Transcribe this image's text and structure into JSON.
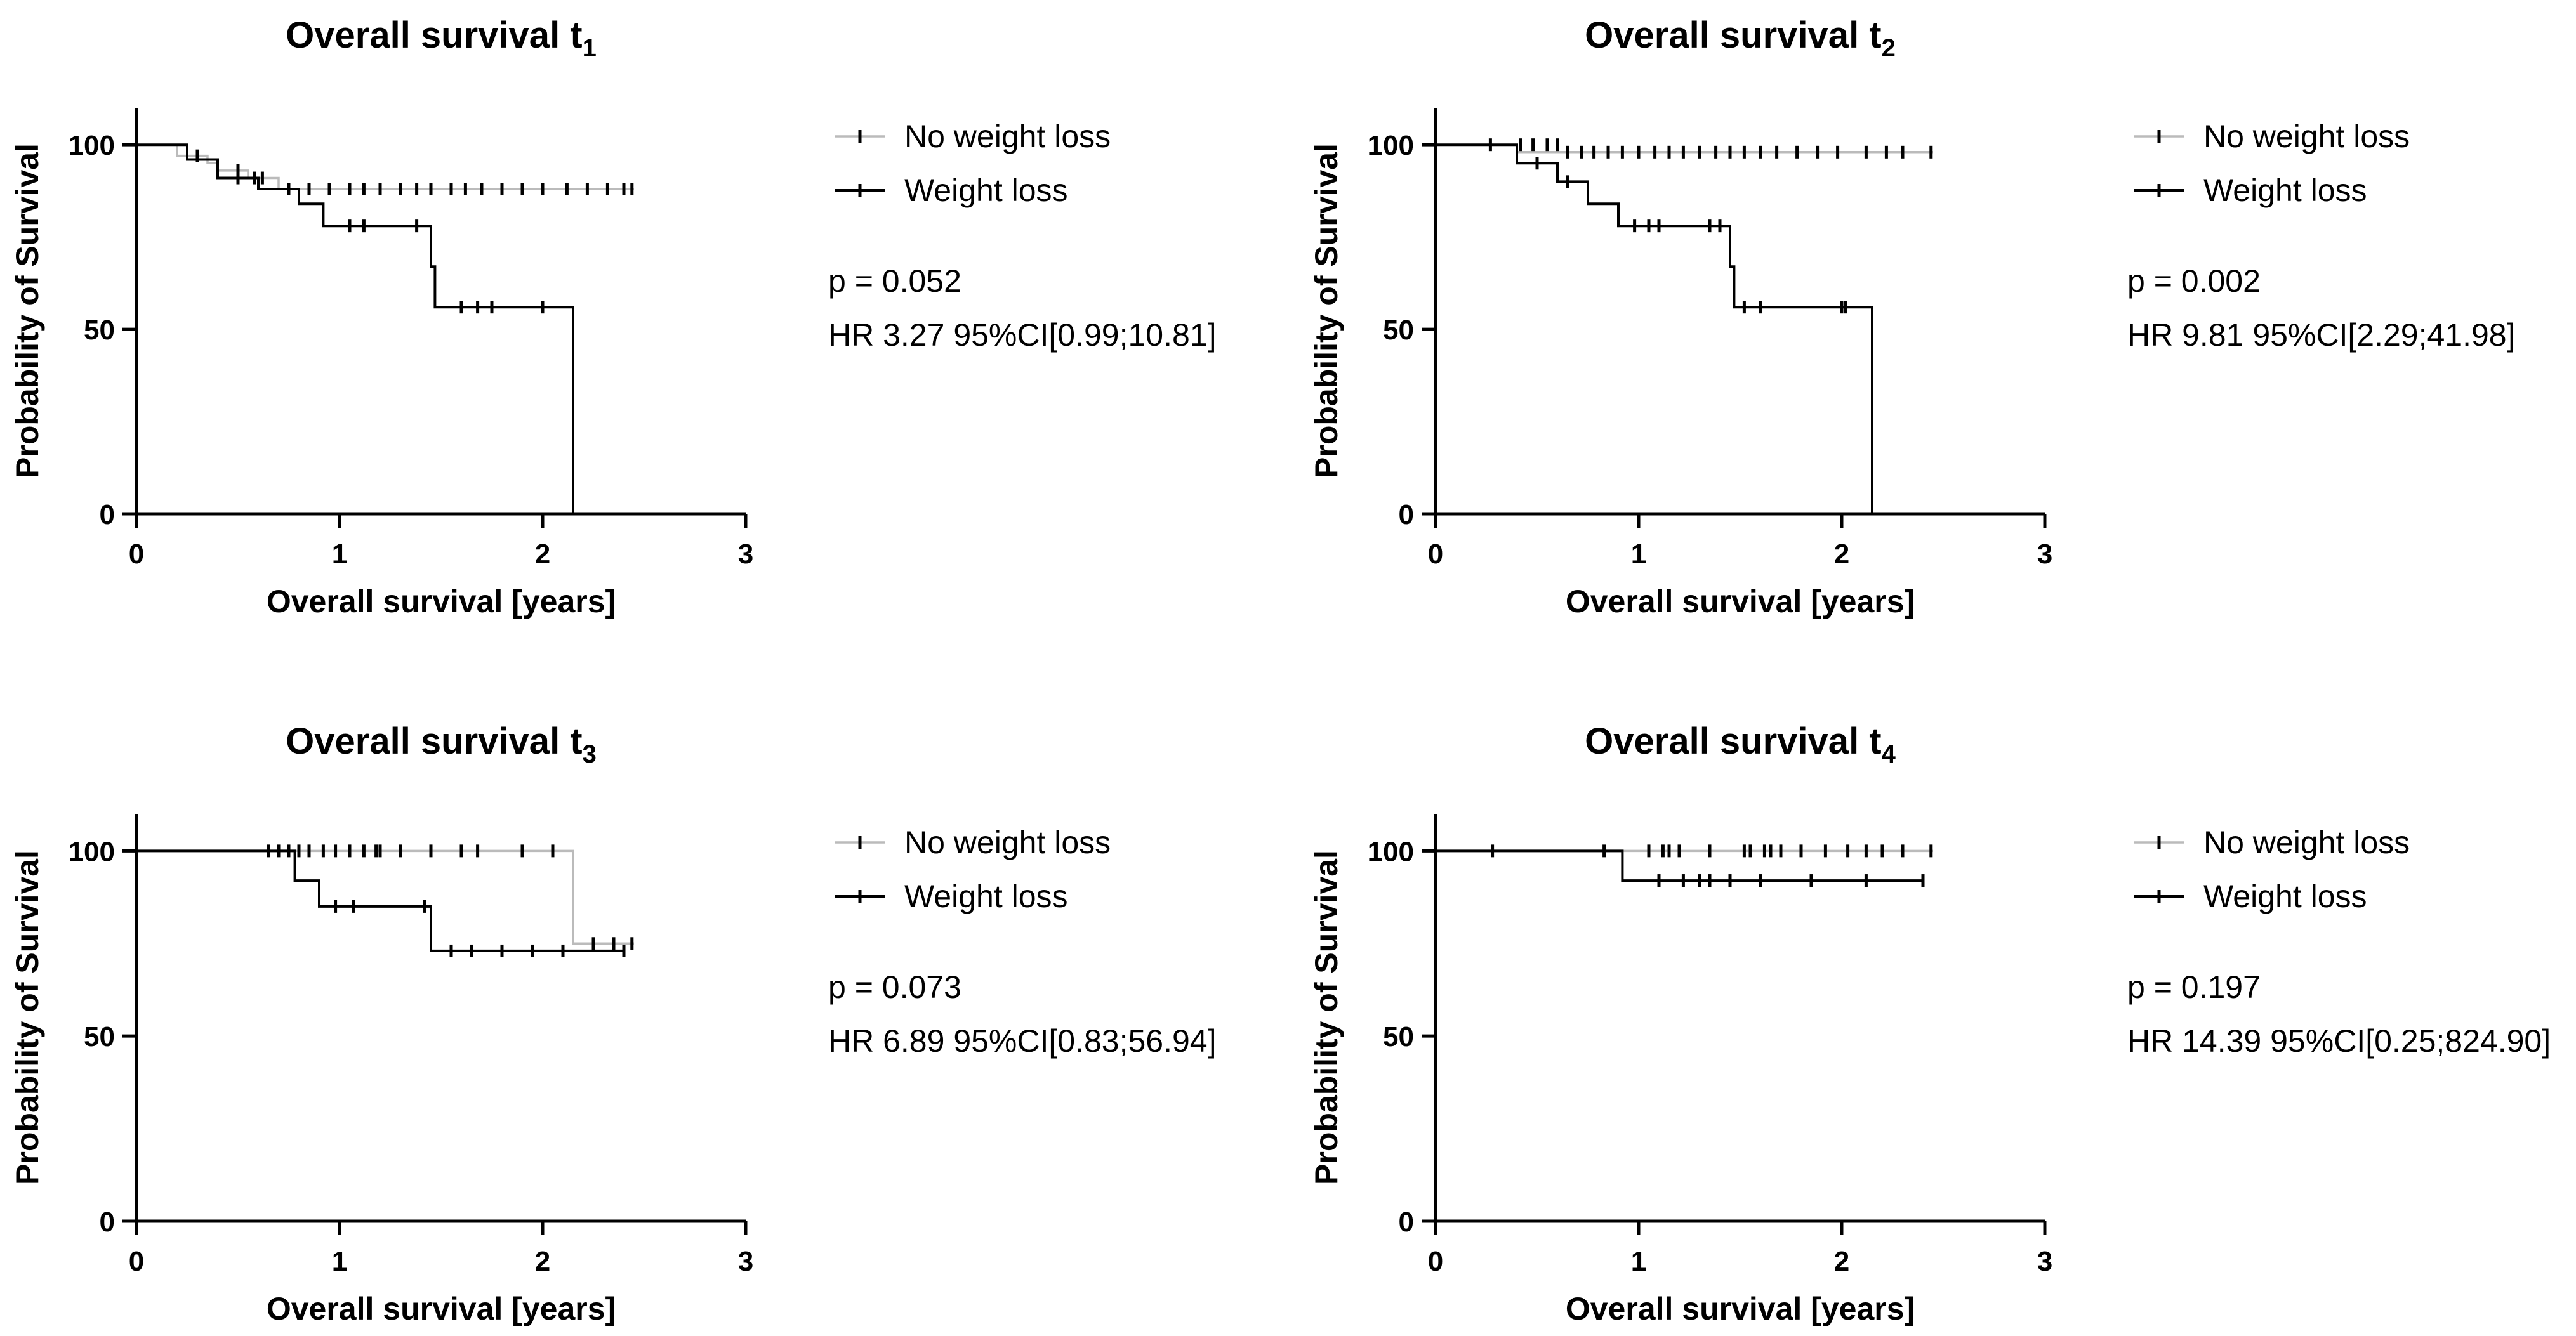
{
  "chart_data": [
    {
      "type": "line",
      "subtype": "kaplan-meier",
      "title": "Overall survival t",
      "title_subscript": "1",
      "xlabel": "Overall survival [years]",
      "ylabel": "Probability of Survival",
      "xlim": [
        0,
        3
      ],
      "ylim": [
        0,
        110
      ],
      "xticks": [
        "0",
        "1",
        "2",
        "3"
      ],
      "yticks": [
        "0",
        "50",
        "100"
      ],
      "legend": [
        "No weight loss",
        "Weight loss"
      ],
      "p_value": "p = 0.052",
      "hr_text": "HR 3.27 95%CI[0.99;10.81]",
      "series": [
        {
          "name": "No weight loss",
          "steps": [
            [
              0,
              100
            ],
            [
              0.2,
              100
            ],
            [
              0.2,
              97
            ],
            [
              0.35,
              97
            ],
            [
              0.35,
              95
            ],
            [
              0.4,
              95
            ],
            [
              0.4,
              93
            ],
            [
              0.55,
              93
            ],
            [
              0.55,
              91
            ],
            [
              0.7,
              91
            ],
            [
              0.7,
              88
            ],
            [
              2.45,
              88
            ]
          ],
          "censored": [
            [
              0.3,
              97
            ],
            [
              0.5,
              93
            ],
            [
              0.58,
              91
            ],
            [
              0.62,
              91
            ],
            [
              0.75,
              88
            ],
            [
              0.85,
              88
            ],
            [
              0.95,
              88
            ],
            [
              1.05,
              88
            ],
            [
              1.12,
              88
            ],
            [
              1.2,
              88
            ],
            [
              1.3,
              88
            ],
            [
              1.38,
              88
            ],
            [
              1.45,
              88
            ],
            [
              1.55,
              88
            ],
            [
              1.62,
              88
            ],
            [
              1.7,
              88
            ],
            [
              1.8,
              88
            ],
            [
              1.9,
              88
            ],
            [
              2.0,
              88
            ],
            [
              2.12,
              88
            ],
            [
              2.22,
              88
            ],
            [
              2.32,
              88
            ],
            [
              2.4,
              88
            ],
            [
              2.44,
              88
            ]
          ]
        },
        {
          "name": "Weight loss",
          "steps": [
            [
              0,
              100
            ],
            [
              0.25,
              100
            ],
            [
              0.25,
              96
            ],
            [
              0.4,
              96
            ],
            [
              0.4,
              91
            ],
            [
              0.6,
              91
            ],
            [
              0.6,
              88
            ],
            [
              0.8,
              88
            ],
            [
              0.8,
              84
            ],
            [
              0.92,
              84
            ],
            [
              0.92,
              78
            ],
            [
              1.45,
              78
            ],
            [
              1.45,
              67
            ],
            [
              1.47,
              67
            ],
            [
              1.47,
              56
            ],
            [
              2.15,
              56
            ],
            [
              2.15,
              0
            ]
          ],
          "censored": [
            [
              0.5,
              91
            ],
            [
              1.05,
              78
            ],
            [
              1.12,
              78
            ],
            [
              1.38,
              78
            ],
            [
              1.6,
              56
            ],
            [
              1.68,
              56
            ],
            [
              1.75,
              56
            ],
            [
              2.0,
              56
            ]
          ]
        }
      ]
    },
    {
      "type": "line",
      "subtype": "kaplan-meier",
      "title": "Overall survival t",
      "title_subscript": "2",
      "xlabel": "Overall survival [years]",
      "ylabel": "Probability of Survival",
      "xlim": [
        0,
        3
      ],
      "ylim": [
        0,
        110
      ],
      "xticks": [
        "0",
        "1",
        "2",
        "3"
      ],
      "yticks": [
        "0",
        "50",
        "100"
      ],
      "legend": [
        "No weight loss",
        "Weight loss"
      ],
      "p_value": "p = 0.002",
      "hr_text": "HR 9.81 95%CI[2.29;41.98]",
      "series": [
        {
          "name": "No weight loss",
          "steps": [
            [
              0,
              100
            ],
            [
              0.4,
              100
            ],
            [
              0.4,
              98
            ],
            [
              2.45,
              98
            ]
          ],
          "censored": [
            [
              0.27,
              100
            ],
            [
              0.42,
              100
            ],
            [
              0.48,
              100
            ],
            [
              0.55,
              100
            ],
            [
              0.6,
              100
            ],
            [
              0.65,
              98
            ],
            [
              0.72,
              98
            ],
            [
              0.78,
              98
            ],
            [
              0.85,
              98
            ],
            [
              0.92,
              98
            ],
            [
              1.0,
              98
            ],
            [
              1.08,
              98
            ],
            [
              1.15,
              98
            ],
            [
              1.22,
              98
            ],
            [
              1.3,
              98
            ],
            [
              1.38,
              98
            ],
            [
              1.45,
              98
            ],
            [
              1.52,
              98
            ],
            [
              1.6,
              98
            ],
            [
              1.68,
              98
            ],
            [
              1.78,
              98
            ],
            [
              1.88,
              98
            ],
            [
              1.98,
              98
            ],
            [
              2.12,
              98
            ],
            [
              2.22,
              98
            ],
            [
              2.3,
              98
            ],
            [
              2.44,
              98
            ]
          ]
        },
        {
          "name": "Weight loss",
          "steps": [
            [
              0,
              100
            ],
            [
              0.4,
              100
            ],
            [
              0.4,
              95
            ],
            [
              0.6,
              95
            ],
            [
              0.6,
              90
            ],
            [
              0.75,
              90
            ],
            [
              0.75,
              84
            ],
            [
              0.9,
              84
            ],
            [
              0.9,
              78
            ],
            [
              1.45,
              78
            ],
            [
              1.45,
              67
            ],
            [
              1.47,
              67
            ],
            [
              1.47,
              56
            ],
            [
              2.15,
              56
            ],
            [
              2.15,
              0
            ]
          ],
          "censored": [
            [
              0.5,
              95
            ],
            [
              0.65,
              90
            ],
            [
              0.98,
              78
            ],
            [
              1.05,
              78
            ],
            [
              1.1,
              78
            ],
            [
              1.35,
              78
            ],
            [
              1.4,
              78
            ],
            [
              1.52,
              56
            ],
            [
              1.6,
              56
            ],
            [
              2.0,
              56
            ],
            [
              2.02,
              56
            ]
          ]
        }
      ]
    },
    {
      "type": "line",
      "subtype": "kaplan-meier",
      "title": "Overall survival t",
      "title_subscript": "3",
      "xlabel": "Overall survival [years]",
      "ylabel": "Probability of Survival",
      "xlim": [
        0,
        3
      ],
      "ylim": [
        0,
        110
      ],
      "xticks": [
        "0",
        "1",
        "2",
        "3"
      ],
      "yticks": [
        "0",
        "50",
        "100"
      ],
      "legend": [
        "No weight loss",
        "Weight loss"
      ],
      "p_value": "p = 0.073",
      "hr_text": "HR 6.89 95%CI[0.83;56.94]",
      "series": [
        {
          "name": "No weight loss",
          "steps": [
            [
              0,
              100
            ],
            [
              2.15,
              100
            ],
            [
              2.15,
              75
            ],
            [
              2.45,
              75
            ]
          ],
          "censored": [
            [
              0.65,
              100
            ],
            [
              0.7,
              100
            ],
            [
              0.75,
              100
            ],
            [
              0.8,
              100
            ],
            [
              0.85,
              100
            ],
            [
              0.92,
              100
            ],
            [
              0.98,
              100
            ],
            [
              1.05,
              100
            ],
            [
              1.12,
              100
            ],
            [
              1.18,
              100
            ],
            [
              1.2,
              100
            ],
            [
              1.3,
              100
            ],
            [
              1.45,
              100
            ],
            [
              1.6,
              100
            ],
            [
              1.68,
              100
            ],
            [
              1.9,
              100
            ],
            [
              2.05,
              100
            ],
            [
              2.25,
              75
            ],
            [
              2.35,
              75
            ],
            [
              2.44,
              75
            ]
          ]
        },
        {
          "name": "Weight loss",
          "steps": [
            [
              0,
              100
            ],
            [
              0.78,
              100
            ],
            [
              0.78,
              92
            ],
            [
              0.9,
              92
            ],
            [
              0.9,
              85
            ],
            [
              1.45,
              85
            ],
            [
              1.45,
              73
            ],
            [
              2.4,
              73
            ]
          ],
          "censored": [
            [
              0.98,
              85
            ],
            [
              1.07,
              85
            ],
            [
              1.42,
              85
            ],
            [
              1.55,
              73
            ],
            [
              1.65,
              73
            ],
            [
              1.8,
              73
            ],
            [
              1.95,
              73
            ],
            [
              2.1,
              73
            ],
            [
              2.4,
              73
            ]
          ]
        }
      ]
    },
    {
      "type": "line",
      "subtype": "kaplan-meier",
      "title": "Overall survival t",
      "title_subscript": "4",
      "xlabel": "Overall survival [years]",
      "ylabel": "Probability of Survival",
      "xlim": [
        0,
        3
      ],
      "ylim": [
        0,
        110
      ],
      "xticks": [
        "0",
        "1",
        "2",
        "3"
      ],
      "yticks": [
        "0",
        "50",
        "100"
      ],
      "legend": [
        "No weight loss",
        "Weight loss"
      ],
      "p_value": "p = 0.197",
      "hr_text": "HR 14.39 95%CI[0.25;824.90]",
      "series": [
        {
          "name": "No weight loss",
          "steps": [
            [
              0,
              100
            ],
            [
              2.45,
              100
            ]
          ],
          "censored": [
            [
              0.28,
              100
            ],
            [
              0.83,
              100
            ],
            [
              1.05,
              100
            ],
            [
              1.12,
              100
            ],
            [
              1.15,
              100
            ],
            [
              1.2,
              100
            ],
            [
              1.35,
              100
            ],
            [
              1.52,
              100
            ],
            [
              1.55,
              100
            ],
            [
              1.62,
              100
            ],
            [
              1.65,
              100
            ],
            [
              1.7,
              100
            ],
            [
              1.8,
              100
            ],
            [
              1.92,
              100
            ],
            [
              2.03,
              100
            ],
            [
              2.12,
              100
            ],
            [
              2.2,
              100
            ],
            [
              2.3,
              100
            ],
            [
              2.44,
              100
            ]
          ]
        },
        {
          "name": "Weight loss",
          "steps": [
            [
              0,
              100
            ],
            [
              0.92,
              100
            ],
            [
              0.92,
              92
            ],
            [
              2.4,
              92
            ]
          ],
          "censored": [
            [
              1.1,
              92
            ],
            [
              1.22,
              92
            ],
            [
              1.3,
              92
            ],
            [
              1.35,
              92
            ],
            [
              1.45,
              92
            ],
            [
              1.6,
              92
            ],
            [
              1.85,
              92
            ],
            [
              2.12,
              92
            ],
            [
              2.4,
              92
            ]
          ]
        }
      ]
    }
  ]
}
